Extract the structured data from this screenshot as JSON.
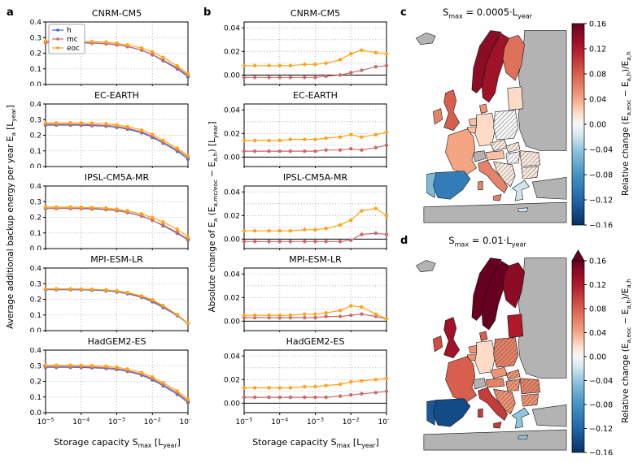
{
  "labels": {
    "a": "a",
    "b": "b",
    "c": "c",
    "d": "d"
  },
  "colors": {
    "h": "#3f6bc9",
    "mc": "#c96a6a",
    "eoc": "#ffa216",
    "grid": "#8fa0b3",
    "land_gray": "#b3b3b3",
    "frame": "#000000"
  },
  "legend": {
    "items": [
      {
        "key": "h",
        "label": "h"
      },
      {
        "key": "mc",
        "label": "mc"
      },
      {
        "key": "eoc",
        "label": "eoc"
      }
    ]
  },
  "chart_data": {
    "type": "multi-panel",
    "x_values": [
      1e-05,
      2e-05,
      5e-05,
      0.0001,
      0.0002,
      0.0005,
      0.001,
      0.002,
      0.005,
      0.01,
      0.02,
      0.05,
      0.1
    ],
    "x_tick_exponents": [
      -5,
      -4,
      -3,
      -2,
      -1
    ],
    "xlabel_segments": [
      [
        "t",
        "Storage capacity S"
      ],
      [
        "sub",
        "max"
      ],
      [
        "t",
        " [L"
      ],
      [
        "sub",
        "year"
      ],
      [
        "t",
        "]"
      ]
    ],
    "panel_a": {
      "ylabel_segments": [
        [
          "t",
          "Average additional backup energy per year E"
        ],
        [
          "sub",
          "a"
        ],
        [
          "t",
          " [L"
        ],
        [
          "sub",
          "year"
        ],
        [
          "t",
          "]"
        ]
      ],
      "ylim": [
        0,
        0.4
      ],
      "yticks": [
        {
          "v": 0,
          "label": "0.0"
        },
        {
          "v": 0.1,
          "label": "0.1"
        },
        {
          "v": 0.2,
          "label": "0.2"
        },
        {
          "v": 0.3,
          "label": "0.3"
        },
        {
          "v": 0.4,
          "label": "0.4"
        }
      ],
      "grid_y": [
        0,
        0.1,
        0.2,
        0.3,
        0.4
      ],
      "zero_line": false,
      "charts": [
        {
          "title": "CNRM-CM5",
          "series": [
            {
              "name": "h",
              "values": [
                0.27,
                0.27,
                0.27,
                0.268,
                0.266,
                0.262,
                0.255,
                0.243,
                0.22,
                0.19,
                0.152,
                0.1,
                0.05
              ]
            },
            {
              "name": "mc",
              "values": [
                0.268,
                0.268,
                0.268,
                0.266,
                0.264,
                0.26,
                0.253,
                0.242,
                0.22,
                0.192,
                0.156,
                0.107,
                0.058
              ]
            },
            {
              "name": "eoc",
              "values": [
                0.278,
                0.278,
                0.278,
                0.276,
                0.274,
                0.271,
                0.264,
                0.253,
                0.233,
                0.208,
                0.173,
                0.119,
                0.068
              ]
            }
          ]
        },
        {
          "title": "EC-EARTH",
          "series": [
            {
              "name": "h",
              "values": [
                0.265,
                0.265,
                0.265,
                0.264,
                0.262,
                0.258,
                0.251,
                0.239,
                0.216,
                0.186,
                0.15,
                0.098,
                0.048
              ]
            },
            {
              "name": "mc",
              "values": [
                0.27,
                0.27,
                0.27,
                0.269,
                0.267,
                0.263,
                0.256,
                0.245,
                0.222,
                0.193,
                0.156,
                0.106,
                0.058
              ]
            },
            {
              "name": "eoc",
              "values": [
                0.279,
                0.279,
                0.279,
                0.278,
                0.277,
                0.273,
                0.266,
                0.255,
                0.233,
                0.205,
                0.167,
                0.117,
                0.069
              ]
            }
          ]
        },
        {
          "title": "IPSL-CM5A-MR",
          "series": [
            {
              "name": "h",
              "values": [
                0.258,
                0.258,
                0.258,
                0.257,
                0.255,
                0.251,
                0.244,
                0.232,
                0.21,
                0.182,
                0.146,
                0.098,
                0.055
              ]
            },
            {
              "name": "mc",
              "values": [
                0.256,
                0.256,
                0.256,
                0.255,
                0.253,
                0.249,
                0.242,
                0.23,
                0.208,
                0.181,
                0.15,
                0.103,
                0.059
              ]
            },
            {
              "name": "eoc",
              "values": [
                0.265,
                0.265,
                0.265,
                0.264,
                0.262,
                0.259,
                0.252,
                0.241,
                0.222,
                0.198,
                0.17,
                0.124,
                0.075
              ]
            }
          ]
        },
        {
          "title": "MPI-ESM-LR",
          "series": [
            {
              "name": "h",
              "values": [
                0.262,
                0.262,
                0.262,
                0.261,
                0.259,
                0.255,
                0.248,
                0.236,
                0.213,
                0.184,
                0.148,
                0.096,
                0.046
              ]
            },
            {
              "name": "mc",
              "values": [
                0.265,
                0.265,
                0.265,
                0.264,
                0.262,
                0.258,
                0.251,
                0.24,
                0.217,
                0.189,
                0.154,
                0.1,
                0.048
              ]
            },
            {
              "name": "eoc",
              "values": [
                0.267,
                0.267,
                0.267,
                0.266,
                0.264,
                0.261,
                0.254,
                0.243,
                0.222,
                0.197,
                0.16,
                0.102,
                0.048
              ]
            }
          ]
        },
        {
          "title": "HadGEM2-ES",
          "series": [
            {
              "name": "h",
              "values": [
                0.29,
                0.29,
                0.29,
                0.289,
                0.287,
                0.283,
                0.276,
                0.264,
                0.24,
                0.21,
                0.172,
                0.118,
                0.065
              ]
            },
            {
              "name": "mc",
              "values": [
                0.295,
                0.295,
                0.295,
                0.294,
                0.292,
                0.288,
                0.281,
                0.269,
                0.246,
                0.217,
                0.18,
                0.127,
                0.075
              ]
            },
            {
              "name": "eoc",
              "values": [
                0.303,
                0.303,
                0.303,
                0.302,
                0.3,
                0.297,
                0.29,
                0.279,
                0.256,
                0.228,
                0.191,
                0.138,
                0.086
              ]
            }
          ]
        }
      ]
    },
    "panel_b": {
      "ylabel_segments": [
        [
          "t",
          "Absolute change of E"
        ],
        [
          "sub",
          "a"
        ],
        [
          "t",
          " (E"
        ],
        [
          "sub",
          "a,mc/eoc"
        ],
        [
          "t",
          " − E"
        ],
        [
          "sub",
          "a,h"
        ],
        [
          "t",
          ") [L"
        ],
        [
          "sub",
          "year"
        ],
        [
          "t",
          "]"
        ]
      ],
      "ylim": [
        -0.008,
        0.045
      ],
      "yticks": [
        {
          "v": 0,
          "label": "0.00"
        },
        {
          "v": 0.02,
          "label": "0.02"
        },
        {
          "v": 0.04,
          "label": "0.04"
        }
      ],
      "grid_y": [
        0,
        0.01,
        0.02,
        0.03,
        0.04
      ],
      "zero_line": true,
      "charts": [
        {
          "title": "CNRM-CM5",
          "series": [
            {
              "name": "mc",
              "values": [
                -0.002,
                -0.002,
                -0.002,
                -0.002,
                -0.002,
                -0.002,
                -0.002,
                -0.001,
                0.0,
                0.002,
                0.004,
                0.007,
                0.008
              ]
            },
            {
              "name": "eoc",
              "values": [
                0.008,
                0.008,
                0.008,
                0.008,
                0.008,
                0.009,
                0.009,
                0.01,
                0.013,
                0.018,
                0.021,
                0.019,
                0.018
              ]
            }
          ]
        },
        {
          "title": "EC-EARTH",
          "series": [
            {
              "name": "mc",
              "values": [
                0.005,
                0.005,
                0.005,
                0.005,
                0.005,
                0.005,
                0.005,
                0.006,
                0.006,
                0.007,
                0.006,
                0.008,
                0.01
              ]
            },
            {
              "name": "eoc",
              "values": [
                0.014,
                0.014,
                0.014,
                0.014,
                0.015,
                0.015,
                0.015,
                0.016,
                0.017,
                0.019,
                0.017,
                0.019,
                0.021
              ]
            }
          ]
        },
        {
          "title": "IPSL-CM5A-MR",
          "series": [
            {
              "name": "mc",
              "values": [
                -0.002,
                -0.002,
                -0.002,
                -0.002,
                -0.002,
                -0.002,
                -0.002,
                -0.002,
                -0.002,
                -0.001,
                0.004,
                0.005,
                0.004
              ]
            },
            {
              "name": "eoc",
              "values": [
                0.007,
                0.007,
                0.007,
                0.007,
                0.007,
                0.008,
                0.008,
                0.009,
                0.012,
                0.016,
                0.024,
                0.026,
                0.02
              ]
            }
          ]
        },
        {
          "title": "MPI-ESM-LR",
          "series": [
            {
              "name": "mc",
              "values": [
                0.003,
                0.003,
                0.003,
                0.003,
                0.003,
                0.003,
                0.003,
                0.004,
                0.004,
                0.005,
                0.006,
                0.004,
                0.002
              ]
            },
            {
              "name": "eoc",
              "values": [
                0.005,
                0.005,
                0.005,
                0.005,
                0.005,
                0.006,
                0.006,
                0.007,
                0.009,
                0.013,
                0.012,
                0.006,
                0.002
              ]
            }
          ]
        },
        {
          "title": "HadGEM2-ES",
          "series": [
            {
              "name": "mc",
              "values": [
                0.005,
                0.005,
                0.005,
                0.005,
                0.005,
                0.005,
                0.005,
                0.005,
                0.006,
                0.007,
                0.008,
                0.009,
                0.01
              ]
            },
            {
              "name": "eoc",
              "values": [
                0.013,
                0.013,
                0.013,
                0.013,
                0.013,
                0.014,
                0.014,
                0.015,
                0.016,
                0.018,
                0.019,
                0.02,
                0.021
              ]
            }
          ]
        }
      ]
    },
    "maps": [
      {
        "id": "c",
        "title_segments": [
          [
            "t",
            "S"
          ],
          [
            "sub",
            "max"
          ],
          [
            "t",
            " = 0.0005·L"
          ],
          [
            "sub",
            "year"
          ]
        ],
        "arrow_top": false,
        "values": {
          "norway": 0.14,
          "sweden": 0.13,
          "finland": 0.07,
          "denmark": 0.05,
          "baltics": 0.02,
          "uk": 0.08,
          "ireland": 0.06,
          "netherlands": 0.03,
          "belgium": 0.03,
          "germany": 0.02,
          "poland": 0.0,
          "czech": 0.01,
          "slovakia": 0.01,
          "austria": 0.03,
          "hungary": 0.0,
          "france": 0.04,
          "spain": -0.1,
          "portugal": -0.05,
          "italy": 0.06,
          "balkans": 0.01,
          "romania": 0.01,
          "bulgaria": 0.01,
          "greece": -0.02
        },
        "hatched": [
          "poland",
          "czech",
          "slovakia",
          "hungary",
          "balkans",
          "romania",
          "bulgaria"
        ]
      },
      {
        "id": "d",
        "title_segments": [
          [
            "t",
            "S"
          ],
          [
            "sub",
            "max"
          ],
          [
            "t",
            " = 0.01·L"
          ],
          [
            "sub",
            "year"
          ]
        ],
        "arrow_top": true,
        "values": {
          "norway": 0.16,
          "sweden": 0.16,
          "finland": 0.14,
          "denmark": 0.08,
          "baltics": 0.12,
          "uk": 0.13,
          "ireland": 0.09,
          "netherlands": 0.05,
          "belgium": 0.05,
          "germany": 0.02,
          "poland": 0.06,
          "czech": 0.05,
          "slovakia": 0.05,
          "austria": 0.06,
          "hungary": 0.05,
          "france": 0.08,
          "spain": -0.14,
          "portugal": -0.13,
          "italy": 0.1,
          "balkans": 0.05,
          "romania": 0.06,
          "bulgaria": 0.05,
          "greece": -0.04
        },
        "hatched": [
          "poland",
          "slovakia",
          "hungary",
          "balkans",
          "romania",
          "bulgaria"
        ]
      }
    ],
    "colorbar": {
      "vmin": -0.16,
      "vmax": 0.16,
      "ticks": [
        {
          "v": 0.16,
          "label": "0.16"
        },
        {
          "v": 0.12,
          "label": "0.12"
        },
        {
          "v": 0.08,
          "label": "0.08"
        },
        {
          "v": 0.04,
          "label": "0.04"
        },
        {
          "v": 0.0,
          "label": "0.00"
        },
        {
          "v": -0.04,
          "label": "−0.04"
        },
        {
          "v": -0.08,
          "label": "−0.08"
        },
        {
          "v": -0.12,
          "label": "−0.12"
        },
        {
          "v": -0.16,
          "label": "−0.16"
        }
      ],
      "label_segments": [
        [
          "t",
          "Relative change (E"
        ],
        [
          "sub",
          "a,eoc"
        ],
        [
          "t",
          " − E"
        ],
        [
          "sub",
          "a,h"
        ],
        [
          "t",
          ")/E"
        ],
        [
          "sub",
          "a,h"
        ]
      ]
    }
  }
}
